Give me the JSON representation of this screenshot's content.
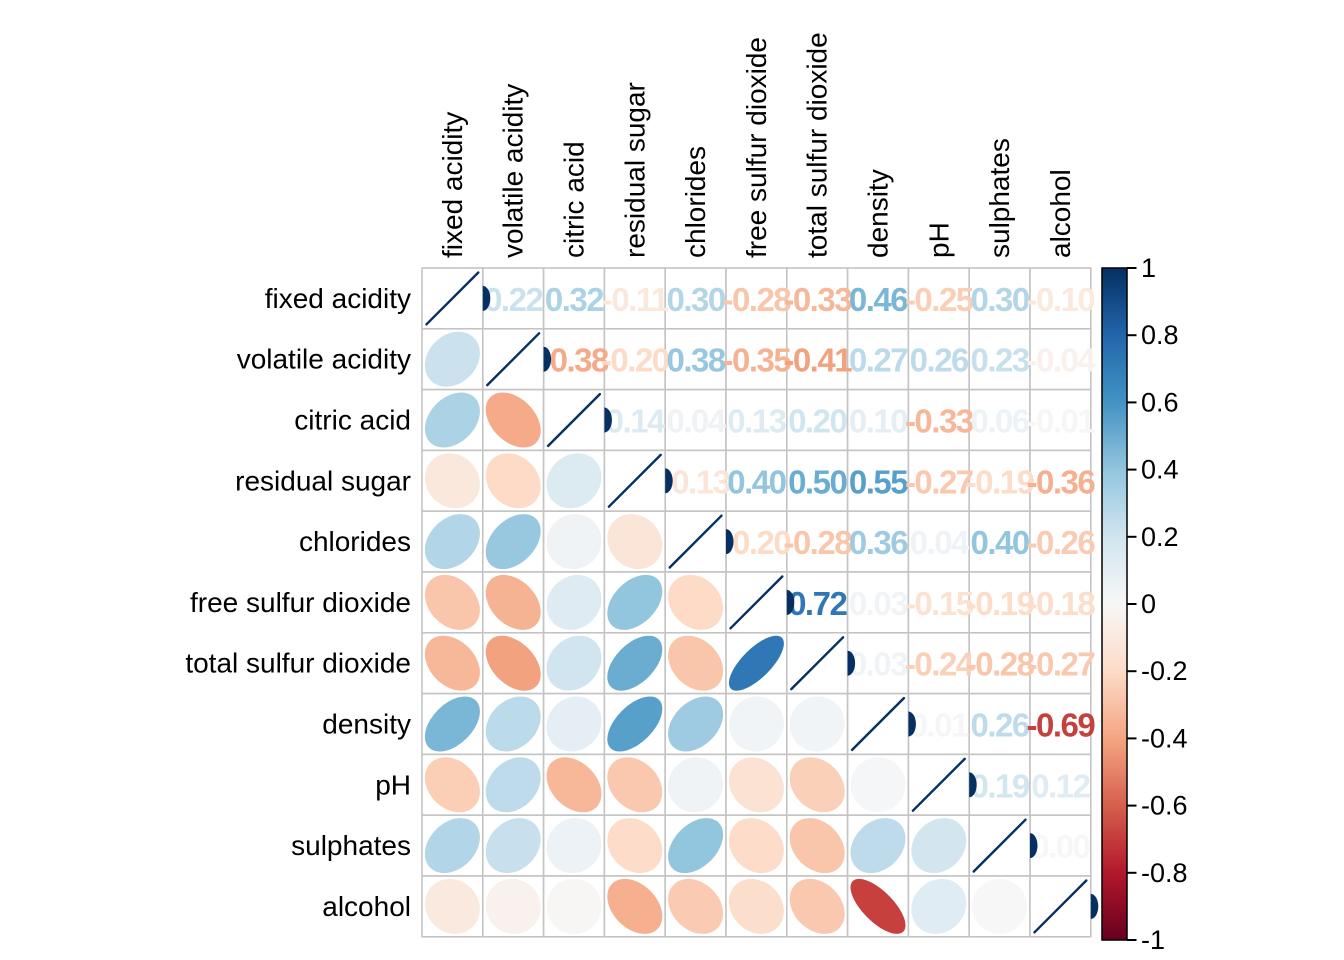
{
  "chart_data": {
    "type": "heatmap",
    "subtype": "correlation-matrix-mixed",
    "title": "",
    "lower_method": "ellipse",
    "upper_method": "number",
    "diagonal": "line",
    "variables": [
      "fixed acidity",
      "volatile acidity",
      "citric acid",
      "residual sugar",
      "chlorides",
      "free sulfur dioxide",
      "total sulfur dioxide",
      "density",
      "pH",
      "sulphates",
      "alcohol"
    ],
    "matrix": [
      [
        1.0,
        0.22,
        0.32,
        -0.11,
        0.3,
        -0.28,
        -0.33,
        0.46,
        -0.25,
        0.3,
        -0.1
      ],
      [
        0.22,
        1.0,
        -0.38,
        -0.2,
        0.38,
        -0.35,
        -0.41,
        0.27,
        0.26,
        0.23,
        -0.04
      ],
      [
        0.32,
        -0.38,
        1.0,
        0.14,
        0.04,
        0.13,
        0.2,
        0.1,
        -0.33,
        0.06,
        -0.01
      ],
      [
        -0.11,
        -0.2,
        0.14,
        1.0,
        -0.13,
        0.4,
        0.5,
        0.55,
        -0.27,
        -0.19,
        -0.36
      ],
      [
        0.3,
        0.38,
        0.04,
        -0.13,
        1.0,
        -0.2,
        -0.28,
        0.36,
        0.04,
        0.4,
        -0.26
      ],
      [
        -0.28,
        -0.35,
        0.13,
        0.4,
        -0.2,
        1.0,
        0.72,
        0.03,
        -0.15,
        -0.19,
        -0.18
      ],
      [
        -0.33,
        -0.41,
        0.2,
        0.5,
        -0.28,
        0.72,
        1.0,
        0.03,
        -0.24,
        -0.28,
        -0.27
      ],
      [
        0.46,
        0.27,
        0.1,
        0.55,
        0.36,
        0.03,
        0.03,
        1.0,
        0.01,
        0.26,
        -0.69
      ],
      [
        -0.25,
        0.26,
        -0.33,
        -0.27,
        0.04,
        -0.15,
        -0.24,
        0.01,
        1.0,
        0.19,
        0.12
      ],
      [
        0.3,
        0.23,
        0.06,
        -0.19,
        0.4,
        -0.19,
        -0.28,
        0.26,
        0.19,
        1.0,
        0.0
      ],
      [
        -0.1,
        -0.04,
        -0.01,
        -0.36,
        -0.26,
        -0.18,
        -0.27,
        -0.69,
        0.12,
        0.0,
        1.0
      ]
    ],
    "legend": {
      "position": "right",
      "range": [
        -1,
        1
      ],
      "tick_labels": [
        "1",
        "0.8",
        "0.6",
        "0.4",
        "0.2",
        "0",
        "-0.2",
        "-0.4",
        "-0.6",
        "-0.8",
        "-1"
      ]
    },
    "palette": {
      "values": [
        -1,
        -0.8,
        -0.6,
        -0.4,
        -0.2,
        0,
        0.2,
        0.4,
        0.6,
        0.8,
        1
      ],
      "colors": [
        "#67001F",
        "#B2182B",
        "#D6604D",
        "#F4A582",
        "#FDDBC7",
        "#F7F7F7",
        "#D1E5F0",
        "#92C5DE",
        "#4393C3",
        "#2166AC",
        "#053061"
      ]
    },
    "colors": {
      "background": "#ffffff",
      "grid": "#c4c4c4",
      "cell_background": "#ffffff",
      "labels": "#000000",
      "diagonal_line": "#053061",
      "colorbar_border": "#000000",
      "tick": "#000000"
    }
  }
}
